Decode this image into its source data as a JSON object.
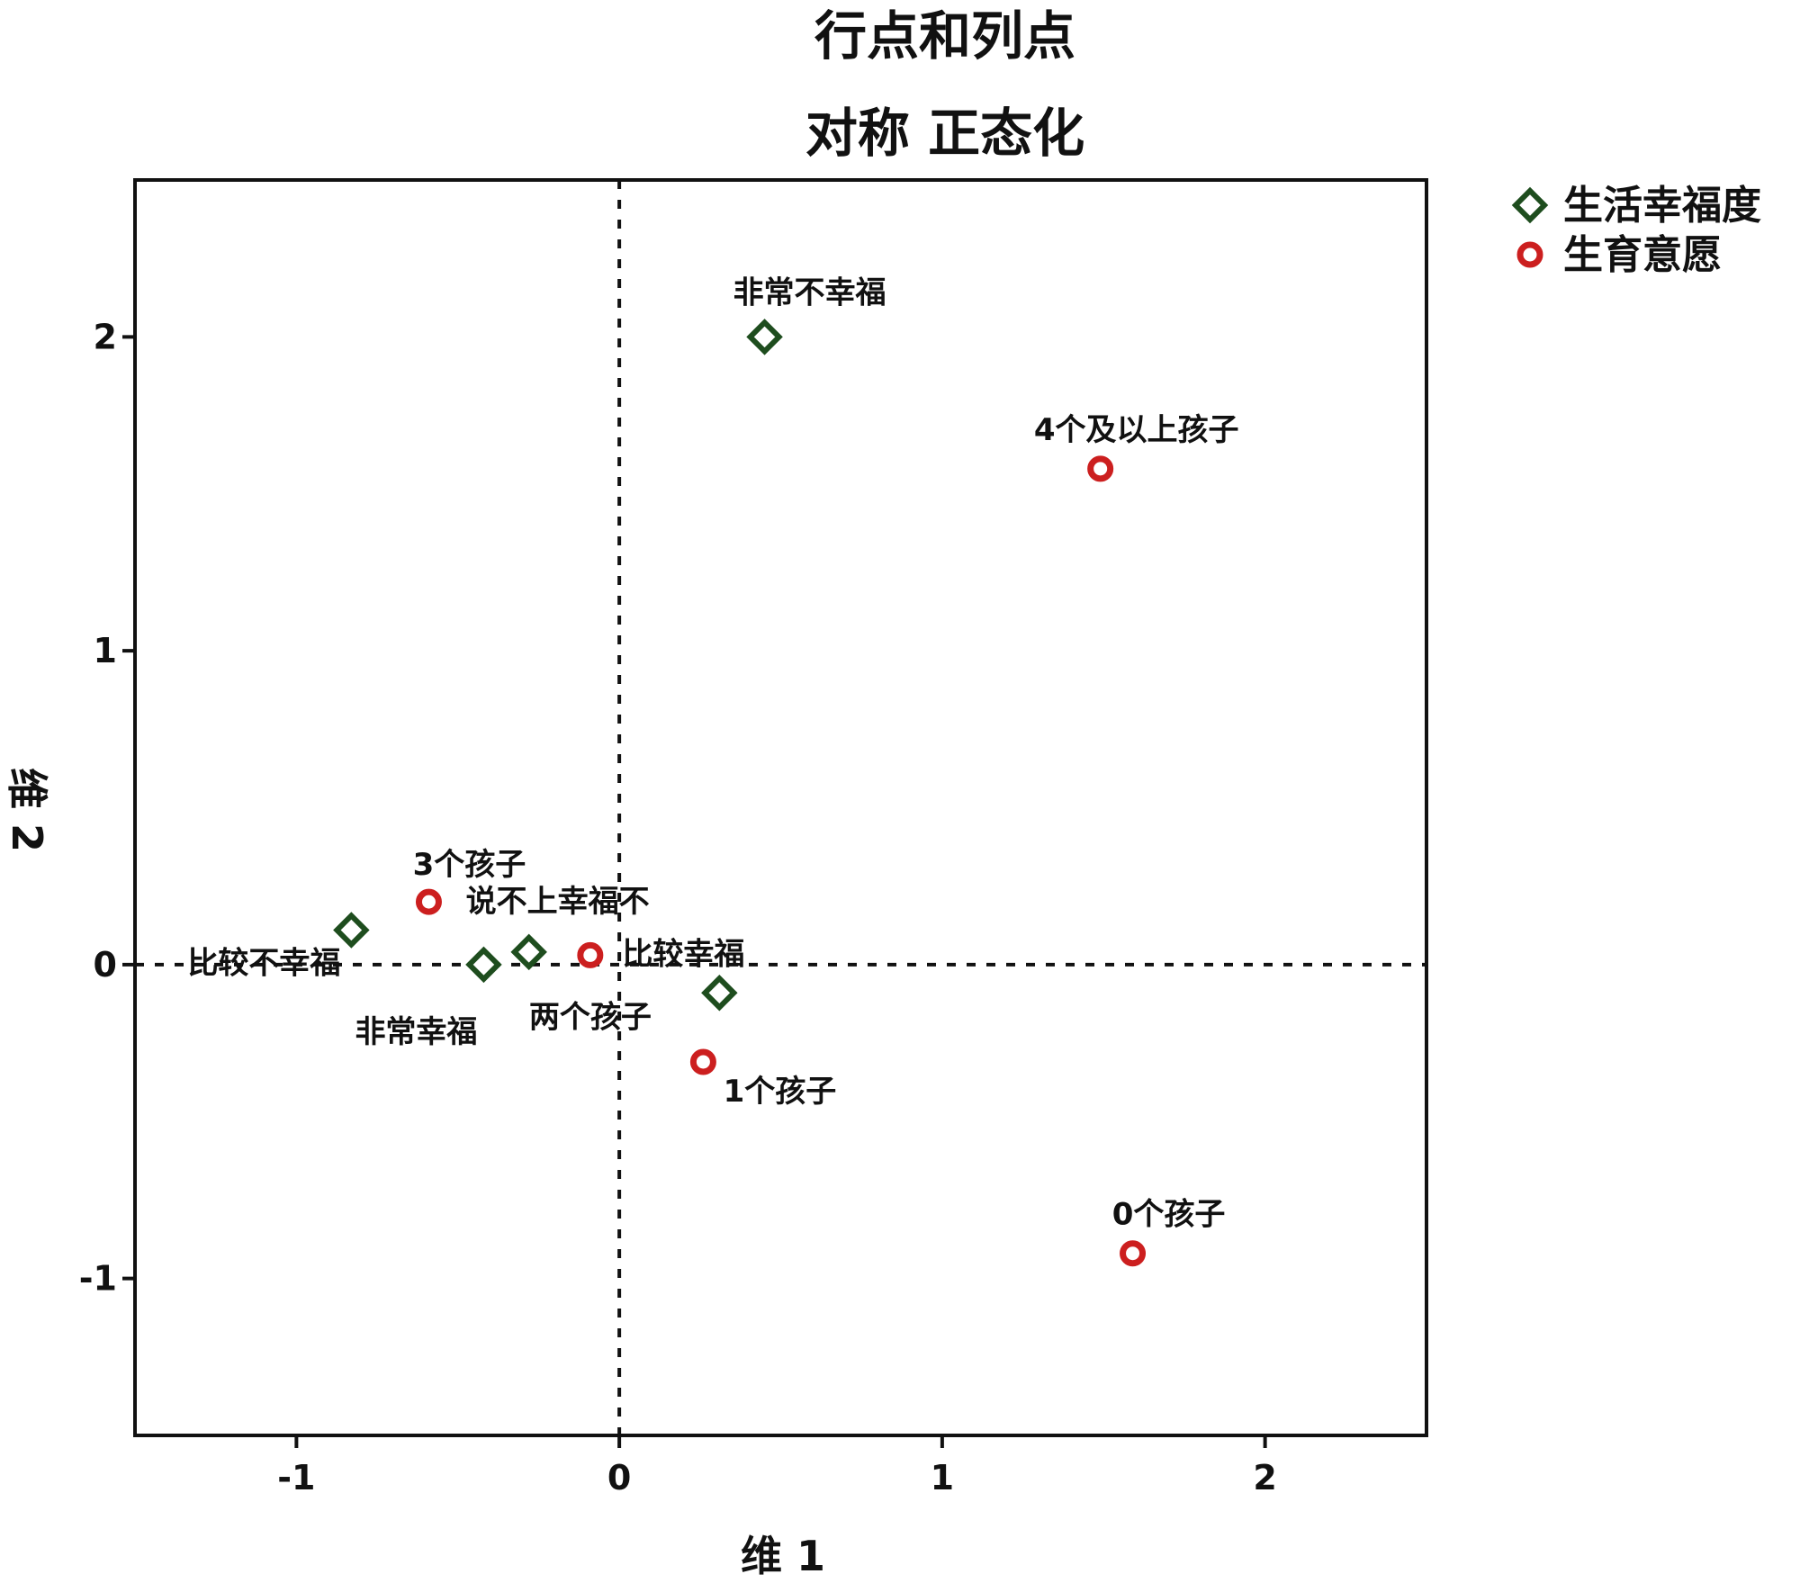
{
  "chart_data": {
    "type": "scatter",
    "title": "行点和列点",
    "subtitle": "对称 正态化",
    "xlabel": "维 1",
    "ylabel": "维 2",
    "xlim": [
      -1.5,
      2.5
    ],
    "ylim": [
      -1.5,
      2.5
    ],
    "xticks": [
      "-1",
      "0",
      "1",
      "2"
    ],
    "yticks": [
      "-1",
      "0",
      "1",
      "2"
    ],
    "reference_lines": {
      "x": 0,
      "y": 0,
      "style": "dashed"
    },
    "legend_position": "top-right, outside plot",
    "series": [
      {
        "name": "生活幸福度",
        "marker": "diamond",
        "color": "#1e4d1e",
        "points": [
          {
            "label": "非常不幸福",
            "x": 0.45,
            "y": 2.0
          },
          {
            "label": "比较不幸福",
            "x": -0.83,
            "y": 0.11
          },
          {
            "label": "非常幸福",
            "x": -0.42,
            "y": 0.0
          },
          {
            "label": "说不上幸福不",
            "x": -0.28,
            "y": 0.04
          },
          {
            "label": "比较幸福",
            "x": 0.31,
            "y": -0.09
          }
        ]
      },
      {
        "name": "生育意愿",
        "marker": "circle",
        "color": "#cc1f1f",
        "points": [
          {
            "label": "4个及以上孩子",
            "x": 1.49,
            "y": 1.58
          },
          {
            "label": "3个孩子",
            "x": -0.59,
            "y": 0.2
          },
          {
            "label": "两个孩子",
            "x": -0.09,
            "y": 0.03
          },
          {
            "label": "1个孩子",
            "x": 0.26,
            "y": -0.31
          },
          {
            "label": "0个孩子",
            "x": 1.59,
            "y": -0.92
          }
        ]
      }
    ]
  }
}
